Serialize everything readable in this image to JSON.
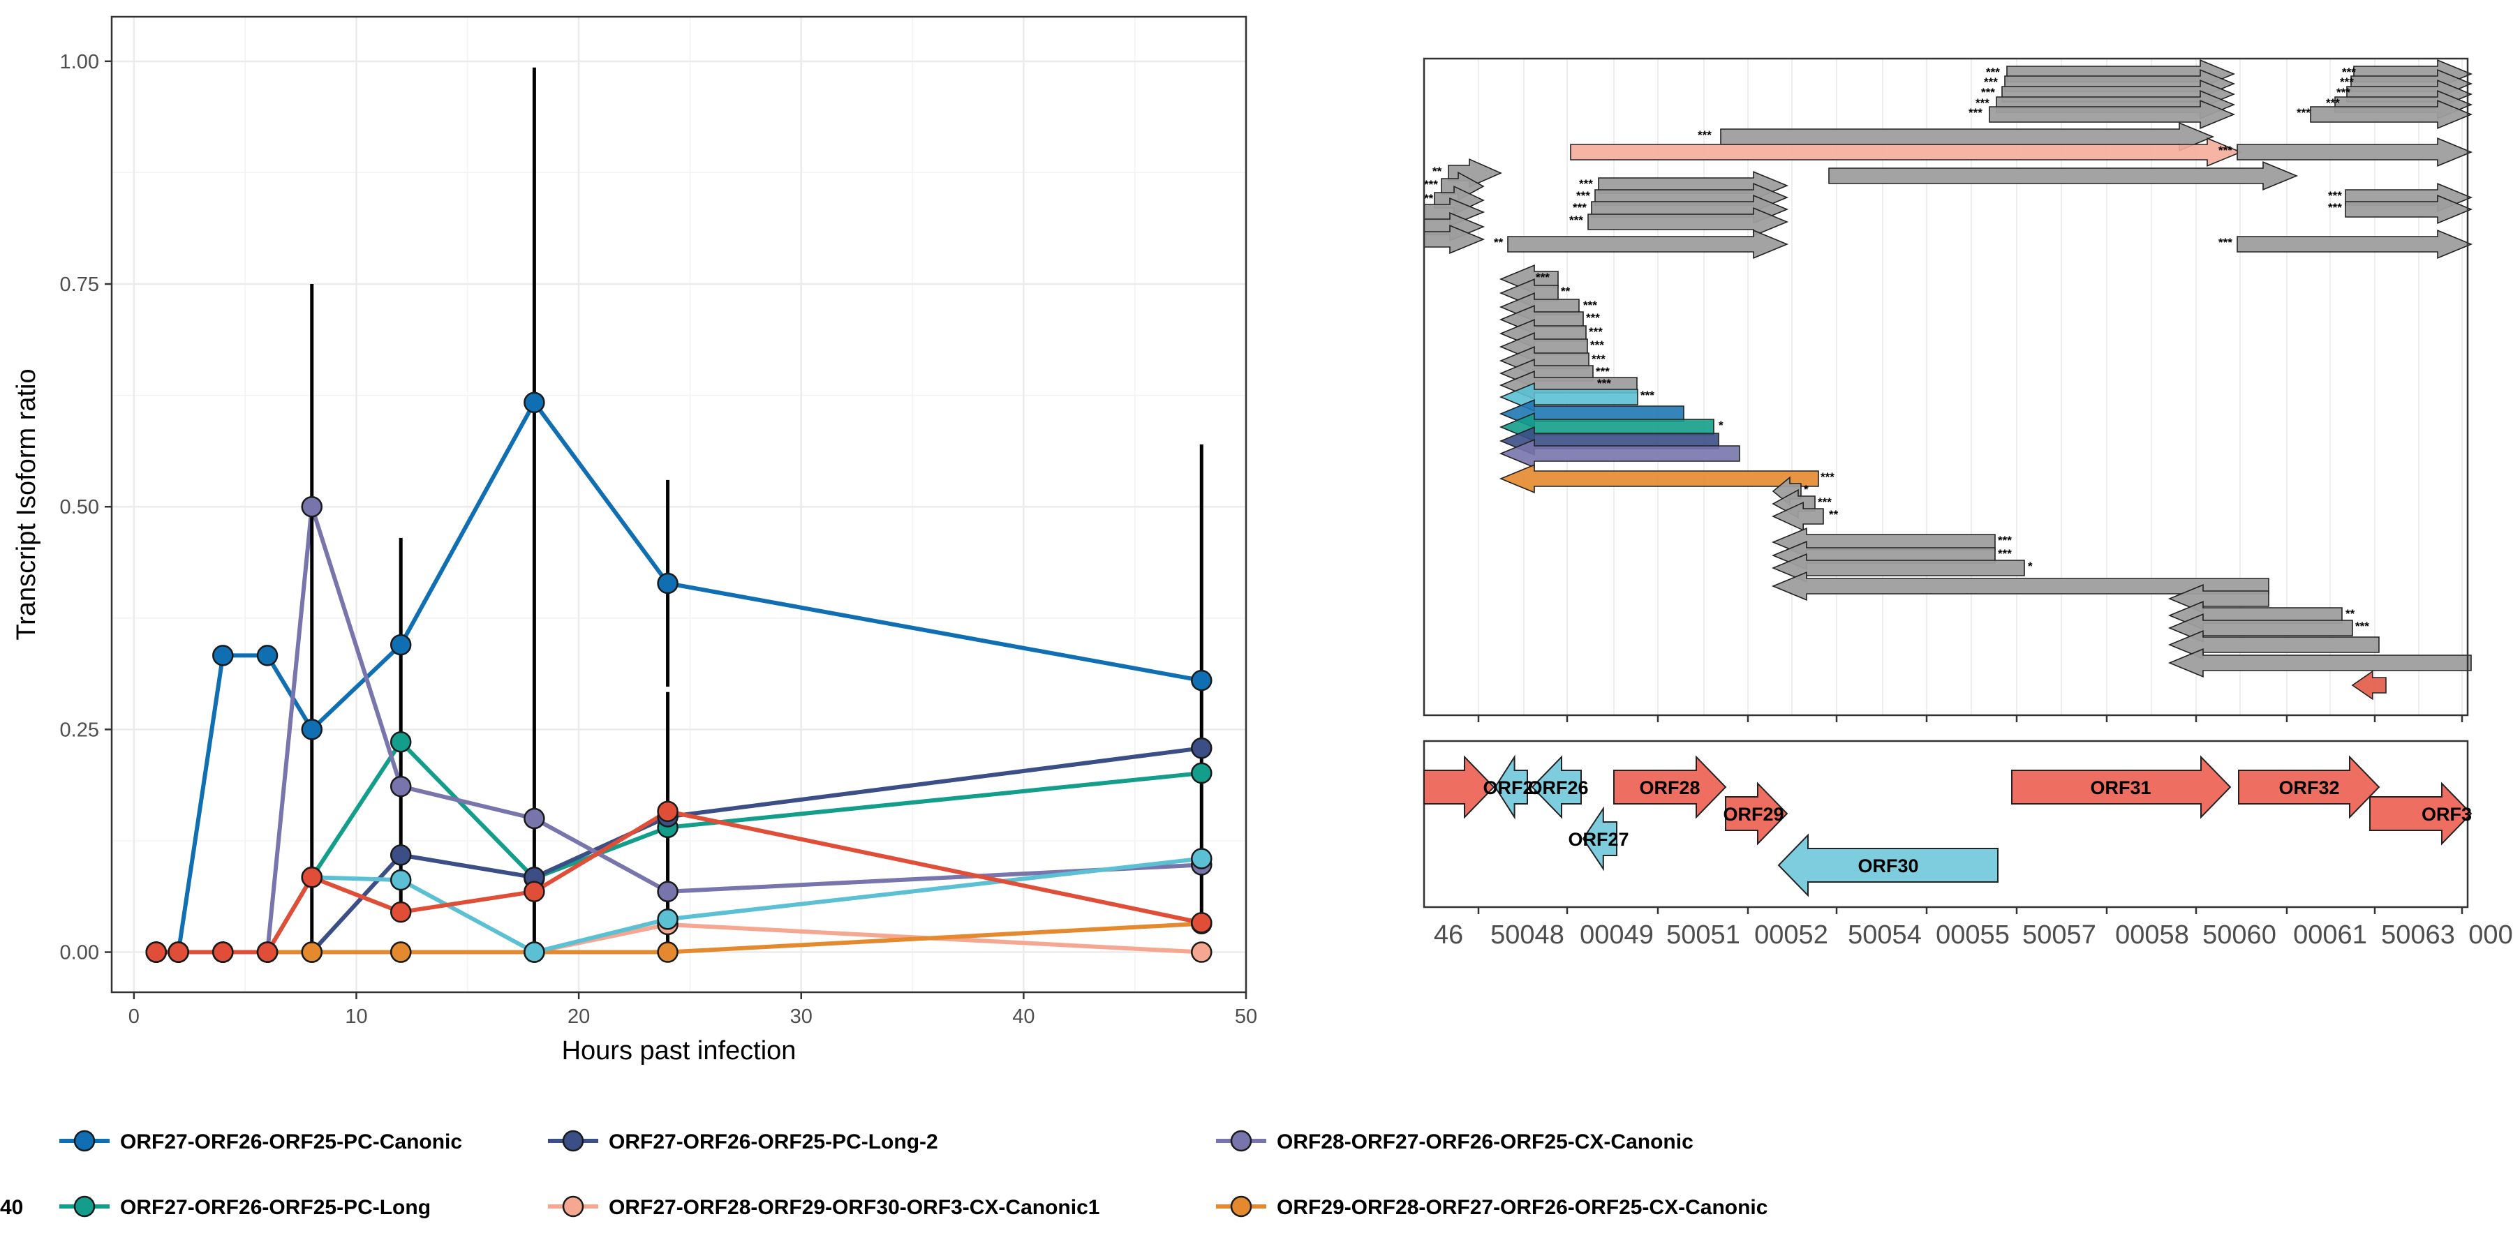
{
  "chart_data": [
    {
      "type": "line",
      "xlabel": "Hours past infection",
      "ylabel": "Transcript Isoform ratio",
      "xlim": [
        -1,
        50
      ],
      "ylim": [
        -0.045,
        1.05
      ],
      "xticks": [
        0,
        10,
        20,
        30,
        40,
        50
      ],
      "xtick_labels": [
        "0",
        "10",
        "20",
        "30",
        "40",
        "50"
      ],
      "yticks": [
        0,
        0.25,
        0.5,
        0.75,
        1.0
      ],
      "ytick_labels": [
        "0.00",
        "0.25",
        "0.50",
        "0.75",
        "1.00"
      ],
      "grid": true,
      "legend_position": "bottom",
      "series": [
        {
          "name": "ORF27-ORF26-ORF25-PC-Canonic",
          "color": "#0F6FB2",
          "x": [
            1,
            2,
            4,
            6,
            8,
            12,
            18,
            24,
            48
          ],
          "y": [
            0,
            0,
            0.333,
            0.333,
            0.25,
            0.345,
            0.617,
            0.414,
            0.305
          ]
        },
        {
          "name": "ORF27-ORF26-ORF25-PC-Long",
          "color": "#129E8A",
          "x": [
            1,
            2,
            4,
            6,
            8,
            12,
            18,
            24,
            48
          ],
          "y": [
            0,
            0,
            0,
            0,
            0.084,
            0.236,
            0.083,
            0.14,
            0.201
          ]
        },
        {
          "name": "ORF27-ORF26-ORF25-PC-Long-2",
          "color": "#3B4F86",
          "x": [
            1,
            2,
            4,
            6,
            8,
            12,
            18,
            24,
            48
          ],
          "y": [
            0,
            0,
            0,
            0,
            0,
            0.109,
            0.084,
            0.152,
            0.229
          ]
        },
        {
          "name": "ORF27-ORF28-ORF29-ORF30-ORF3-CX-Canonic1",
          "color": "#F5A791",
          "x": [
            1,
            2,
            4,
            6,
            8,
            12,
            18,
            24,
            48
          ],
          "y": [
            0,
            0,
            0,
            0,
            0,
            0,
            0,
            0.031,
            0
          ]
        },
        {
          "name": "ORF28-ORF27-ORF26-ORF25-CX-Canonic",
          "color": "#7875AC",
          "x": [
            1,
            2,
            4,
            6,
            8,
            12,
            18,
            24,
            48
          ],
          "y": [
            0,
            0,
            0,
            0,
            0.5,
            0.186,
            0.15,
            0.068,
            0.098
          ]
        },
        {
          "name": "ORF29-ORF28-ORF27-ORF26-ORF25-CX-Canonic",
          "color": "#E4892E",
          "x": [
            1,
            2,
            4,
            6,
            8,
            12,
            18,
            24,
            48
          ],
          "y": [
            0,
            0,
            0,
            0,
            0,
            0,
            0,
            0,
            0.032
          ]
        },
        {
          "name": "",
          "color": "#5BC0D3",
          "x": [
            1,
            2,
            4,
            6,
            8,
            12,
            18,
            24,
            48
          ],
          "y": [
            0,
            0,
            0,
            0,
            0.084,
            0.081,
            0,
            0.037,
            0.105
          ]
        },
        {
          "name": "",
          "color": "#E04E38",
          "x": [
            1,
            2,
            4,
            6,
            8,
            12,
            18,
            24,
            48
          ],
          "y": [
            0,
            0,
            0,
            0,
            0.084,
            0.045,
            0.068,
            0.158,
            0.033
          ]
        }
      ],
      "error_bars": [
        {
          "x": 8,
          "low": 0,
          "high": 0.75
        },
        {
          "x": 12,
          "low": 0.05,
          "high": 0.465
        },
        {
          "x": 18,
          "low": 0,
          "high": 0.993
        },
        {
          "x": 24,
          "low": 0.298,
          "high": 0.53
        },
        {
          "x": 24,
          "low": 0,
          "high": 0.292
        },
        {
          "x": 48,
          "low": 0.04,
          "high": 0.57
        }
      ]
    },
    {
      "type": "diagram",
      "coordinate_tick_labels": [
        "46",
        "50048",
        "00049",
        "50051",
        "00052",
        "50054",
        "00055",
        "50057",
        "00058",
        "50060",
        "00061",
        "50063",
        "000"
      ],
      "isoform_colors": {
        "gray": "#9E9E9E",
        "salmon": "#F5AD9A",
        "cyan": "#5BC0D3",
        "blue": "#1F78B4",
        "teal": "#139E8A",
        "navy": "#3B4F86",
        "purple": "#7875AC",
        "orange": "#E4892E",
        "red": "#E25A45"
      },
      "gene_colors": {
        "forward": "#EE6F61",
        "reverse": "#7ECDDF"
      },
      "genes": [
        {
          "label": "",
          "strand": "+"
        },
        {
          "label": "ORF25",
          "strand": "-"
        },
        {
          "label": "ORF26",
          "strand": "-"
        },
        {
          "label": "ORF27",
          "strand": "-"
        },
        {
          "label": "ORF28",
          "strand": "+"
        },
        {
          "label": "ORF29",
          "strand": "+"
        },
        {
          "label": "ORF30",
          "strand": "-"
        },
        {
          "label": "ORF31",
          "strand": "+"
        },
        {
          "label": "ORF32",
          "strand": "+"
        },
        {
          "label": "ORF3",
          "strand": "+"
        }
      ]
    }
  ],
  "legend": {
    "cut_label": "40",
    "items": [
      {
        "label": "ORF27-ORF26-ORF25-PC-Canonic",
        "color": "#0F6FB2"
      },
      {
        "label": "ORF27-ORF26-ORF25-PC-Long",
        "color": "#129E8A"
      },
      {
        "label": "ORF27-ORF26-ORF25-PC-Long-2",
        "color": "#3B4F86"
      },
      {
        "label": "ORF27-ORF28-ORF29-ORF30-ORF3-CX-Canonic1",
        "color": "#F5A791"
      },
      {
        "label": "ORF28-ORF27-ORF26-ORF25-CX-Canonic",
        "color": "#7875AC"
      },
      {
        "label": "ORF29-ORF28-ORF27-ORF26-ORF25-CX-Canonic",
        "color": "#E4892E"
      }
    ]
  }
}
